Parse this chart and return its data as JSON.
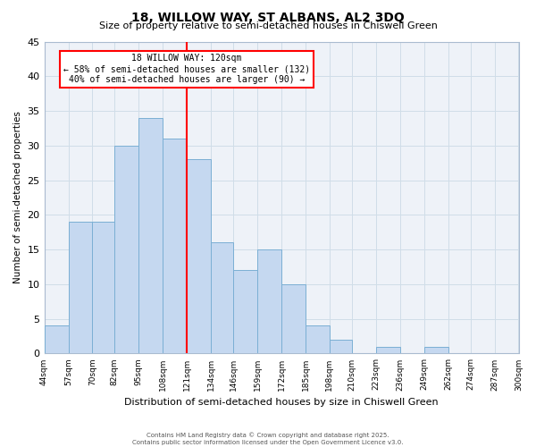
{
  "title": "18, WILLOW WAY, ST ALBANS, AL2 3DQ",
  "subtitle": "Size of property relative to semi-detached houses in Chiswell Green",
  "xlabel": "Distribution of semi-detached houses by size in Chiswell Green",
  "ylabel": "Number of semi-detached properties",
  "bar_left_edges": [
    44,
    57,
    70,
    82,
    95,
    108,
    121,
    134,
    146,
    159,
    172,
    185,
    198,
    210,
    223,
    236,
    249,
    262,
    274,
    287
  ],
  "bar_widths": [
    13,
    13,
    12,
    13,
    13,
    13,
    13,
    12,
    13,
    13,
    13,
    13,
    12,
    13,
    13,
    13,
    13,
    12,
    13,
    13
  ],
  "bar_heights": [
    4,
    19,
    19,
    30,
    34,
    31,
    28,
    16,
    12,
    15,
    10,
    4,
    2,
    0,
    1,
    0,
    1,
    0,
    0,
    0
  ],
  "bar_color": "#c5d8f0",
  "bar_edge_color": "#7bafd4",
  "grid_color": "#d0dde8",
  "bg_color": "#eef2f8",
  "red_line_x": 121,
  "xlim": [
    44,
    300
  ],
  "ylim": [
    0,
    45
  ],
  "yticks": [
    0,
    5,
    10,
    15,
    20,
    25,
    30,
    35,
    40,
    45
  ],
  "xtick_labels": [
    "44sqm",
    "57sqm",
    "70sqm",
    "82sqm",
    "95sqm",
    "108sqm",
    "121sqm",
    "134sqm",
    "146sqm",
    "159sqm",
    "172sqm",
    "185sqm",
    "198sqm",
    "210sqm",
    "223sqm",
    "236sqm",
    "249sqm",
    "262sqm",
    "274sqm",
    "287sqm",
    "300sqm"
  ],
  "xtick_positions": [
    44,
    57,
    70,
    82,
    95,
    108,
    121,
    134,
    146,
    159,
    172,
    185,
    198,
    210,
    223,
    236,
    249,
    262,
    274,
    287,
    300
  ],
  "annotation_title": "18 WILLOW WAY: 120sqm",
  "annotation_line2": "← 58% of semi-detached houses are smaller (132)",
  "annotation_line3": "40% of semi-detached houses are larger (90) →",
  "footer_line1": "Contains HM Land Registry data © Crown copyright and database right 2025.",
  "footer_line2": "Contains public sector information licensed under the Open Government Licence v3.0."
}
